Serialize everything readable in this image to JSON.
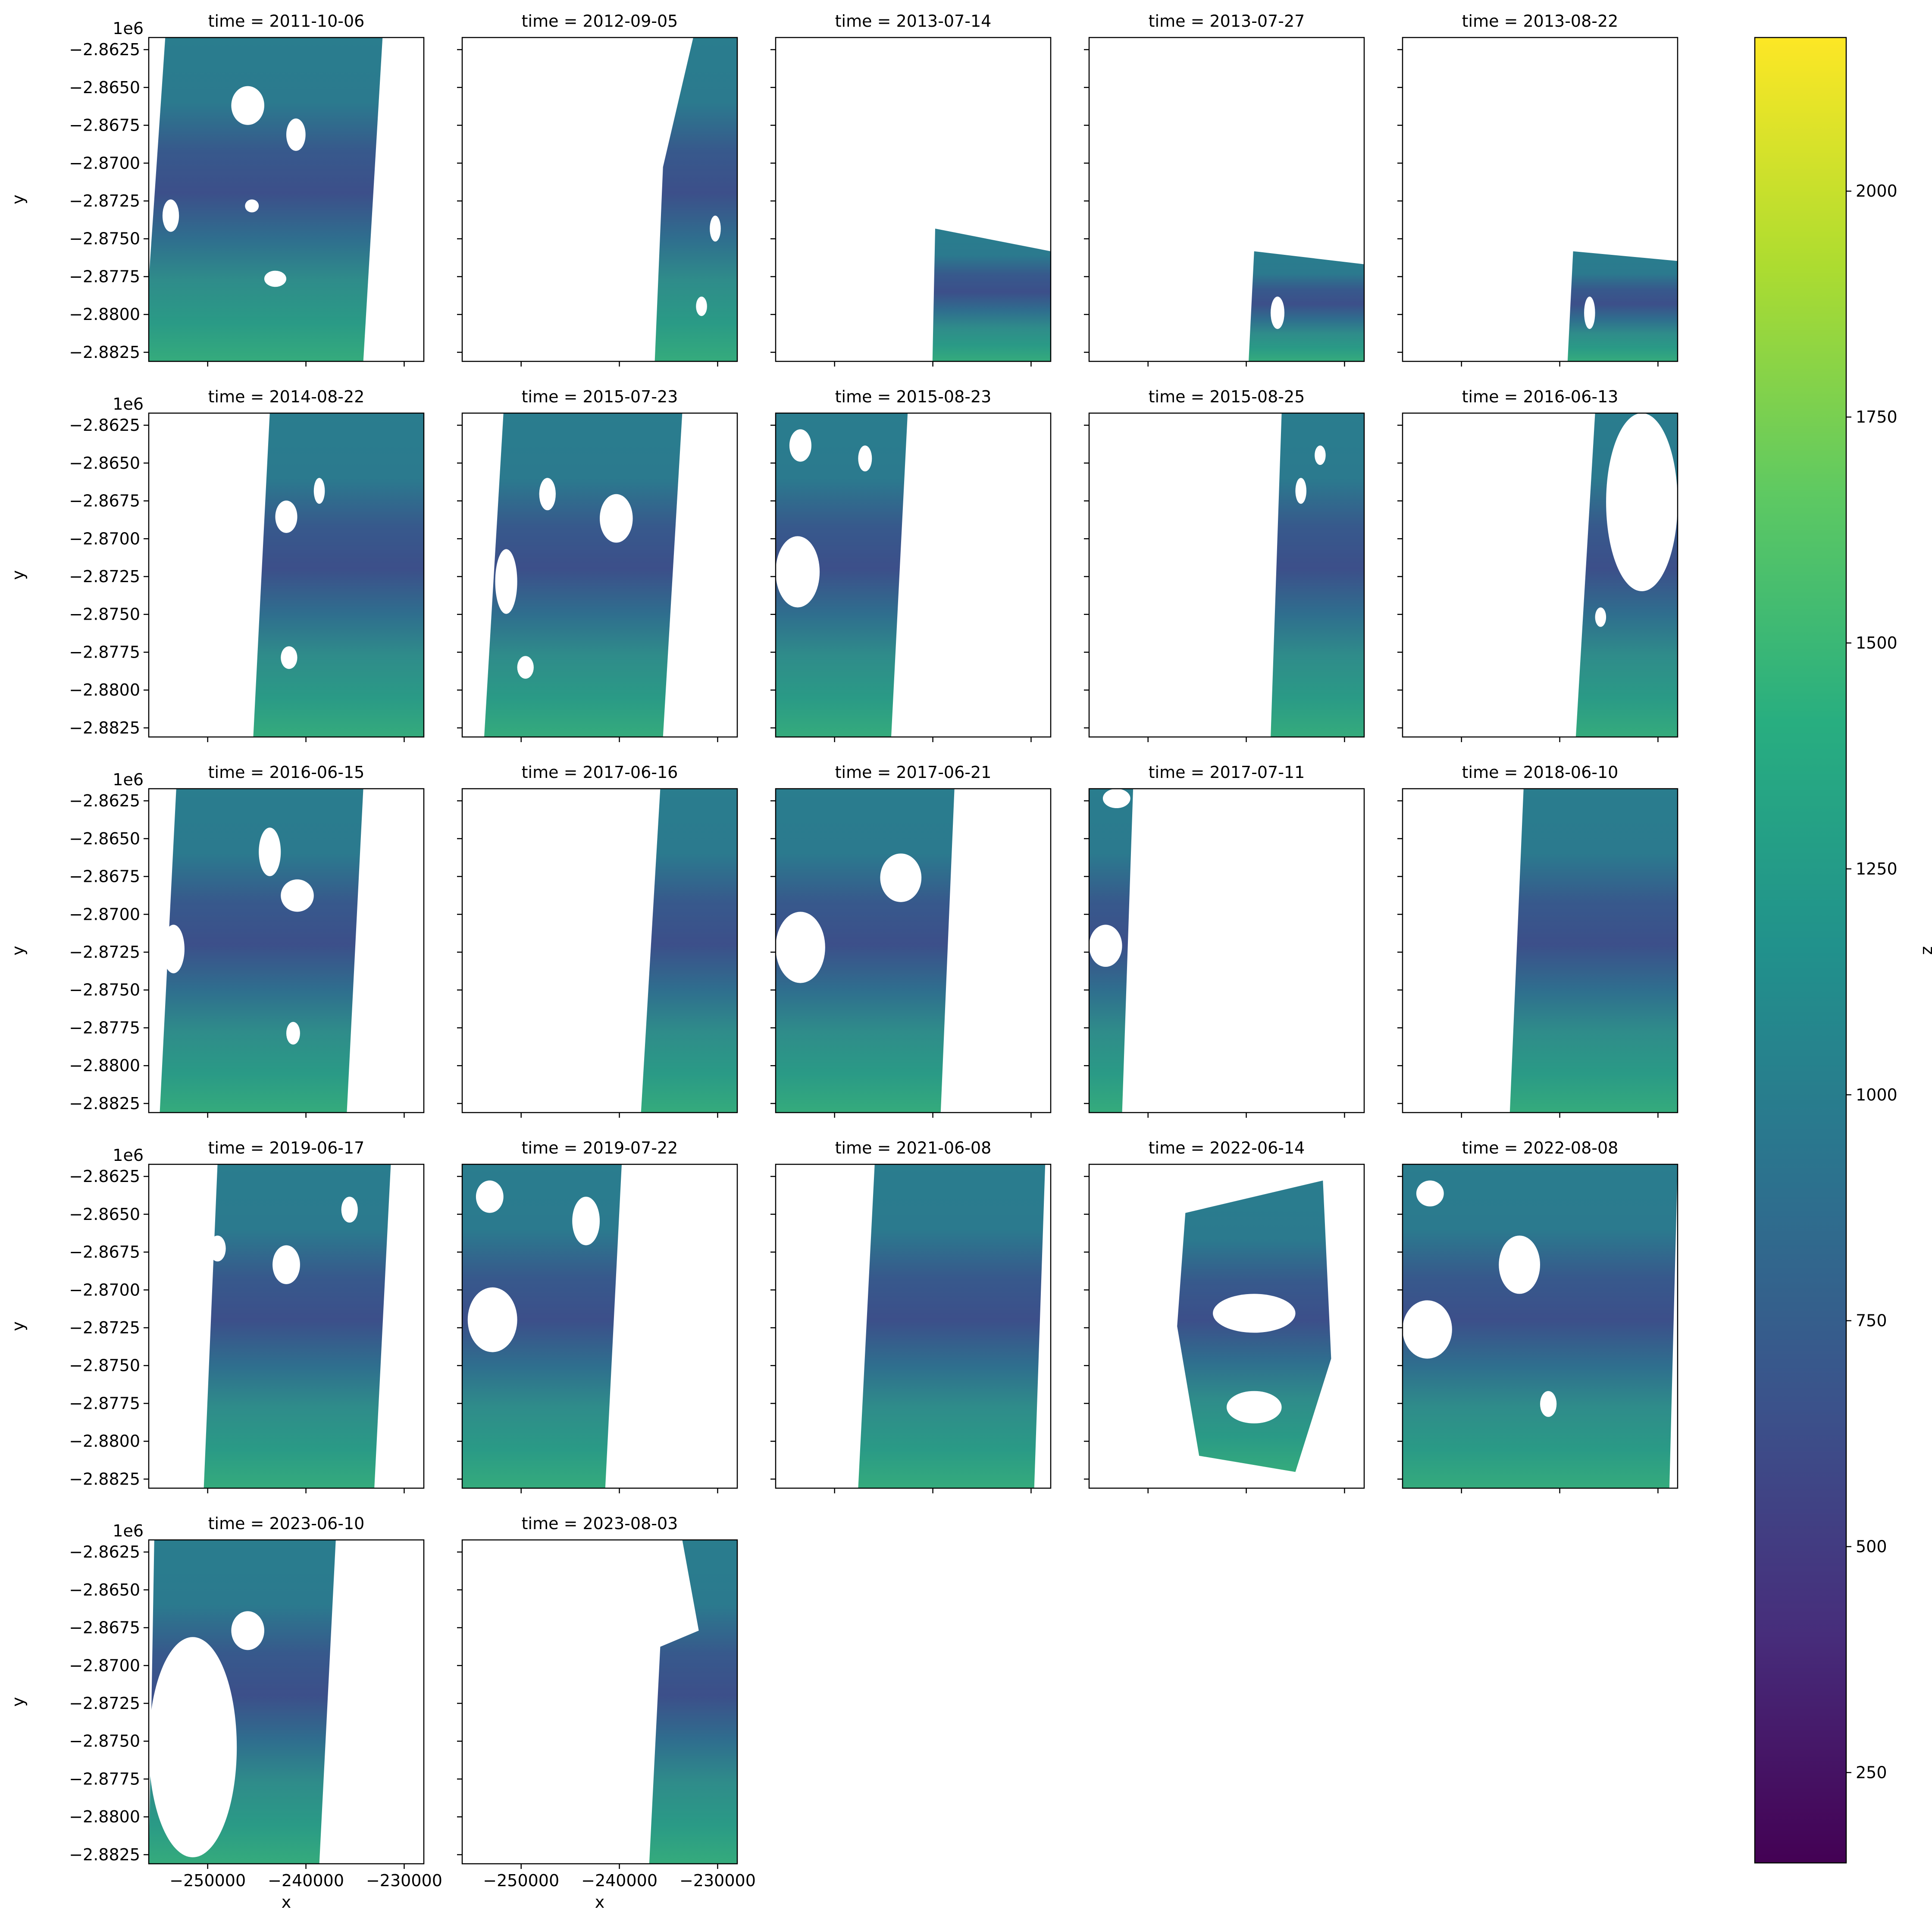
{
  "figure": {
    "panels": [
      {
        "title": "time = 2011-10-06",
        "offset_label": "1e6",
        "ylabel": "y",
        "xlabel": "",
        "show_xticklabels": false,
        "show_yticklabels": true,
        "coverage": {
          "poly": [
            [
              0.06,
              0.0
            ],
            [
              0.85,
              0.0
            ],
            [
              0.78,
              1.0
            ],
            [
              -0.02,
              1.0
            ]
          ],
          "holes": [
            [
              0.3,
              0.15,
              0.12,
              0.12
            ],
            [
              0.5,
              0.25,
              0.07,
              0.1
            ],
            [
              0.42,
              0.72,
              0.08,
              0.05
            ],
            [
              0.05,
              0.5,
              0.06,
              0.1
            ],
            [
              0.35,
              0.5,
              0.05,
              0.04
            ]
          ]
        }
      },
      {
        "title": "time = 2012-09-05",
        "offset_label": "",
        "ylabel": "",
        "xlabel": "",
        "show_xticklabels": false,
        "show_yticklabels": false,
        "coverage": {
          "poly": [
            [
              0.84,
              0.0
            ],
            [
              1.0,
              0.0
            ],
            [
              1.0,
              1.0
            ],
            [
              0.7,
              1.0
            ],
            [
              0.73,
              0.4
            ]
          ],
          "holes": [
            [
              0.9,
              0.55,
              0.04,
              0.08
            ],
            [
              0.85,
              0.8,
              0.04,
              0.06
            ]
          ]
        }
      },
      {
        "title": "time = 2013-07-14",
        "offset_label": "",
        "ylabel": "",
        "xlabel": "",
        "show_xticklabels": false,
        "show_yticklabels": false,
        "coverage": {
          "poly": [
            [
              0.58,
              0.59
            ],
            [
              1.0,
              0.66
            ],
            [
              1.0,
              1.0
            ],
            [
              0.57,
              1.0
            ]
          ],
          "holes": []
        }
      },
      {
        "title": "time = 2013-07-27",
        "offset_label": "",
        "ylabel": "",
        "xlabel": "",
        "show_xticklabels": false,
        "show_yticklabels": false,
        "coverage": {
          "poly": [
            [
              0.6,
              0.66
            ],
            [
              1.0,
              0.7
            ],
            [
              1.0,
              1.0
            ],
            [
              0.58,
              1.0
            ]
          ],
          "holes": [
            [
              0.66,
              0.8,
              0.05,
              0.1
            ]
          ]
        }
      },
      {
        "title": "time = 2013-08-22",
        "offset_label": "",
        "ylabel": "",
        "xlabel": "",
        "show_xticklabels": false,
        "show_yticklabels": false,
        "coverage": {
          "poly": [
            [
              0.62,
              0.66
            ],
            [
              1.0,
              0.69
            ],
            [
              1.0,
              1.0
            ],
            [
              0.6,
              1.0
            ]
          ],
          "holes": [
            [
              0.66,
              0.8,
              0.04,
              0.1
            ]
          ]
        }
      },
      {
        "title": "time = 2014-08-22",
        "offset_label": "1e6",
        "ylabel": "y",
        "xlabel": "",
        "show_xticklabels": false,
        "show_yticklabels": true,
        "coverage": {
          "poly": [
            [
              0.44,
              0.0
            ],
            [
              1.0,
              0.0
            ],
            [
              1.0,
              1.0
            ],
            [
              0.38,
              1.0
            ]
          ],
          "holes": [
            [
              0.46,
              0.27,
              0.08,
              0.1
            ],
            [
              0.6,
              0.2,
              0.04,
              0.08
            ],
            [
              0.48,
              0.72,
              0.06,
              0.07
            ]
          ]
        }
      },
      {
        "title": "time = 2015-07-23",
        "offset_label": "",
        "ylabel": "",
        "xlabel": "",
        "show_xticklabels": false,
        "show_yticklabels": false,
        "coverage": {
          "poly": [
            [
              0.15,
              0.0
            ],
            [
              0.8,
              0.0
            ],
            [
              0.73,
              1.0
            ],
            [
              0.08,
              1.0
            ]
          ],
          "holes": [
            [
              0.5,
              0.25,
              0.12,
              0.15
            ],
            [
              0.28,
              0.2,
              0.06,
              0.1
            ],
            [
              0.12,
              0.42,
              0.08,
              0.2
            ],
            [
              0.2,
              0.75,
              0.06,
              0.07
            ]
          ]
        }
      },
      {
        "title": "time = 2015-08-23",
        "offset_label": "",
        "ylabel": "",
        "xlabel": "",
        "show_xticklabels": false,
        "show_yticklabels": false,
        "coverage": {
          "poly": [
            [
              0.0,
              0.0
            ],
            [
              0.48,
              0.0
            ],
            [
              0.42,
              1.0
            ],
            [
              0.0,
              1.0
            ]
          ],
          "holes": [
            [
              0.0,
              0.38,
              0.16,
              0.22
            ],
            [
              0.05,
              0.05,
              0.08,
              0.1
            ],
            [
              0.3,
              0.1,
              0.05,
              0.08
            ]
          ]
        }
      },
      {
        "title": "time = 2015-08-25",
        "offset_label": "",
        "ylabel": "",
        "xlabel": "",
        "show_xticklabels": false,
        "show_yticklabels": false,
        "coverage": {
          "poly": [
            [
              0.7,
              0.0
            ],
            [
              1.0,
              0.0
            ],
            [
              1.0,
              1.0
            ],
            [
              0.66,
              1.0
            ]
          ],
          "holes": [
            [
              0.75,
              0.2,
              0.04,
              0.08
            ],
            [
              0.82,
              0.1,
              0.04,
              0.06
            ]
          ]
        }
      },
      {
        "title": "time = 2016-06-13",
        "offset_label": "",
        "ylabel": "",
        "xlabel": "",
        "show_xticklabels": false,
        "show_yticklabels": false,
        "coverage": {
          "poly": [
            [
              0.7,
              0.0
            ],
            [
              1.0,
              0.0
            ],
            [
              1.0,
              1.0
            ],
            [
              0.63,
              1.0
            ]
          ],
          "holes": [
            [
              0.74,
              0.0,
              0.26,
              0.55
            ],
            [
              0.7,
              0.6,
              0.04,
              0.06
            ]
          ]
        }
      },
      {
        "title": "time = 2016-06-15",
        "offset_label": "1e6",
        "ylabel": "y",
        "xlabel": "",
        "show_xticklabels": false,
        "show_yticklabels": true,
        "coverage": {
          "poly": [
            [
              0.1,
              0.0
            ],
            [
              0.78,
              0.0
            ],
            [
              0.72,
              1.0
            ],
            [
              0.04,
              1.0
            ]
          ],
          "holes": [
            [
              0.4,
              0.12,
              0.08,
              0.15
            ],
            [
              0.48,
              0.28,
              0.12,
              0.1
            ],
            [
              0.05,
              0.42,
              0.08,
              0.15
            ],
            [
              0.5,
              0.72,
              0.05,
              0.07
            ]
          ]
        }
      },
      {
        "title": "time = 2017-06-16",
        "offset_label": "",
        "ylabel": "",
        "xlabel": "",
        "show_xticklabels": false,
        "show_yticklabels": false,
        "coverage": {
          "poly": [
            [
              0.72,
              0.0
            ],
            [
              1.0,
              0.0
            ],
            [
              1.0,
              1.0
            ],
            [
              0.65,
              1.0
            ]
          ],
          "holes": []
        }
      },
      {
        "title": "time = 2017-06-21",
        "offset_label": "",
        "ylabel": "",
        "xlabel": "",
        "show_xticklabels": false,
        "show_yticklabels": false,
        "coverage": {
          "poly": [
            [
              0.0,
              0.0
            ],
            [
              0.65,
              0.0
            ],
            [
              0.6,
              1.0
            ],
            [
              0.0,
              1.0
            ]
          ],
          "holes": [
            [
              0.0,
              0.38,
              0.18,
              0.22
            ],
            [
              0.38,
              0.2,
              0.15,
              0.15
            ]
          ]
        }
      },
      {
        "title": "time = 2017-07-11",
        "offset_label": "",
        "ylabel": "",
        "xlabel": "",
        "show_xticklabels": false,
        "show_yticklabels": false,
        "coverage": {
          "poly": [
            [
              0.0,
              0.0
            ],
            [
              0.16,
              0.0
            ],
            [
              0.12,
              1.0
            ],
            [
              0.0,
              1.0
            ]
          ],
          "holes": [
            [
              0.0,
              0.42,
              0.12,
              0.13
            ],
            [
              0.05,
              0.0,
              0.1,
              0.06
            ]
          ]
        }
      },
      {
        "title": "time = 2018-06-10",
        "offset_label": "",
        "ylabel": "",
        "xlabel": "",
        "show_xticklabels": false,
        "show_yticklabels": false,
        "coverage": {
          "poly": [
            [
              0.44,
              0.0
            ],
            [
              1.0,
              0.0
            ],
            [
              1.0,
              1.0
            ],
            [
              0.39,
              1.0
            ]
          ],
          "holes": []
        }
      },
      {
        "title": "time = 2019-06-17",
        "offset_label": "1e6",
        "ylabel": "y",
        "xlabel": "",
        "show_xticklabels": false,
        "show_yticklabels": true,
        "coverage": {
          "poly": [
            [
              0.25,
              0.0
            ],
            [
              0.88,
              0.0
            ],
            [
              0.82,
              1.0
            ],
            [
              0.2,
              1.0
            ]
          ],
          "holes": [
            [
              0.45,
              0.25,
              0.1,
              0.12
            ],
            [
              0.22,
              0.22,
              0.06,
              0.08
            ],
            [
              0.7,
              0.1,
              0.06,
              0.08
            ]
          ]
        }
      },
      {
        "title": "time = 2019-07-22",
        "offset_label": "",
        "ylabel": "",
        "xlabel": "",
        "show_xticklabels": false,
        "show_yticklabels": false,
        "coverage": {
          "poly": [
            [
              0.0,
              0.0
            ],
            [
              0.58,
              0.0
            ],
            [
              0.52,
              1.0
            ],
            [
              0.0,
              1.0
            ]
          ],
          "holes": [
            [
              0.02,
              0.38,
              0.18,
              0.2
            ],
            [
              0.05,
              0.05,
              0.1,
              0.1
            ],
            [
              0.4,
              0.1,
              0.1,
              0.15
            ]
          ]
        }
      },
      {
        "title": "time = 2021-06-08",
        "offset_label": "",
        "ylabel": "",
        "xlabel": "",
        "show_xticklabels": false,
        "show_yticklabels": false,
        "coverage": {
          "poly": [
            [
              0.36,
              0.0
            ],
            [
              0.98,
              0.0
            ],
            [
              0.94,
              1.0
            ],
            [
              0.3,
              1.0
            ]
          ],
          "holes": []
        }
      },
      {
        "title": "time = 2022-06-14",
        "offset_label": "",
        "ylabel": "",
        "xlabel": "",
        "show_xticklabels": false,
        "show_yticklabels": false,
        "coverage": {
          "poly": [
            [
              0.35,
              0.15
            ],
            [
              0.85,
              0.05
            ],
            [
              0.88,
              0.6
            ],
            [
              0.75,
              0.95
            ],
            [
              0.4,
              0.9
            ],
            [
              0.32,
              0.5
            ]
          ],
          "holes": [
            [
              0.45,
              0.4,
              0.3,
              0.12
            ],
            [
              0.5,
              0.7,
              0.2,
              0.1
            ]
          ]
        }
      },
      {
        "title": "time = 2022-08-08",
        "offset_label": "",
        "ylabel": "",
        "xlabel": "",
        "show_xticklabels": false,
        "show_yticklabels": false,
        "coverage": {
          "poly": [
            [
              0.0,
              0.0
            ],
            [
              1.0,
              0.0
            ],
            [
              0.97,
              1.0
            ],
            [
              0.0,
              1.0
            ]
          ],
          "holes": [
            [
              0.0,
              0.42,
              0.18,
              0.18
            ],
            [
              0.35,
              0.22,
              0.15,
              0.18
            ],
            [
              0.05,
              0.05,
              0.1,
              0.08
            ],
            [
              0.5,
              0.7,
              0.06,
              0.08
            ]
          ]
        }
      },
      {
        "title": "time = 2023-06-10",
        "offset_label": "1e6",
        "ylabel": "y",
        "xlabel": "x",
        "show_xticklabels": true,
        "show_yticklabels": true,
        "coverage": {
          "poly": [
            [
              0.02,
              0.0
            ],
            [
              0.68,
              0.0
            ],
            [
              0.62,
              1.0
            ],
            [
              0.0,
              1.0
            ]
          ],
          "holes": [
            [
              0.0,
              0.3,
              0.32,
              0.68
            ],
            [
              0.3,
              0.22,
              0.12,
              0.12
            ]
          ]
        }
      },
      {
        "title": "time = 2023-08-03",
        "offset_label": "",
        "ylabel": "",
        "xlabel": "x",
        "show_xticklabels": true,
        "show_yticklabels": false,
        "coverage": {
          "poly": [
            [
              0.8,
              0.0
            ],
            [
              1.0,
              0.0
            ],
            [
              1.0,
              1.0
            ],
            [
              0.68,
              1.0
            ],
            [
              0.72,
              0.33
            ],
            [
              0.86,
              0.28
            ]
          ],
          "holes": []
        }
      }
    ],
    "colorbar": {
      "label": "z",
      "ticks": [
        "250",
        "500",
        "750",
        "1000",
        "1250",
        "1500",
        "1750",
        "2000"
      ]
    }
  },
  "chart_data": {
    "type": "heatmap",
    "title": "",
    "xlabel": "x",
    "ylabel": "y",
    "y_offset_label": "1e6",
    "colorbar_label": "z",
    "colormap": "viridis",
    "x_ticks": [
      -250000,
      -240000,
      -230000
    ],
    "x_tick_labels": [
      "−250000",
      "−240000",
      "−230000"
    ],
    "xlim": [
      -256000,
      -228000
    ],
    "y_ticks": [
      -2.8625,
      -2.865,
      -2.8675,
      -2.87,
      -2.8725,
      -2.875,
      -2.8775,
      -2.88,
      -2.8825
    ],
    "y_tick_labels": [
      "−2.8625",
      "−2.8650",
      "−2.8675",
      "−2.8700",
      "−2.8725",
      "−2.8750",
      "−2.8775",
      "−2.8800",
      "−2.8825"
    ],
    "ylim": [
      -2.8831,
      -2.8617
    ],
    "z_range": [
      150,
      2170
    ],
    "colorbar_ticks": [
      250,
      500,
      750,
      1000,
      1250,
      1500,
      1750,
      2000
    ],
    "panels": [
      "time = 2011-10-06",
      "time = 2012-09-05",
      "time = 2013-07-14",
      "time = 2013-07-27",
      "time = 2013-08-22",
      "time = 2014-08-22",
      "time = 2015-07-23",
      "time = 2015-08-23",
      "time = 2015-08-25",
      "time = 2016-06-13",
      "time = 2016-06-15",
      "time = 2017-06-16",
      "time = 2017-06-21",
      "time = 2017-07-11",
      "time = 2018-06-10",
      "time = 2019-06-17",
      "time = 2019-07-22",
      "time = 2021-06-08",
      "time = 2022-06-14",
      "time = 2022-08-08",
      "time = 2023-06-10",
      "time = 2023-08-03"
    ],
    "grid": false
  }
}
